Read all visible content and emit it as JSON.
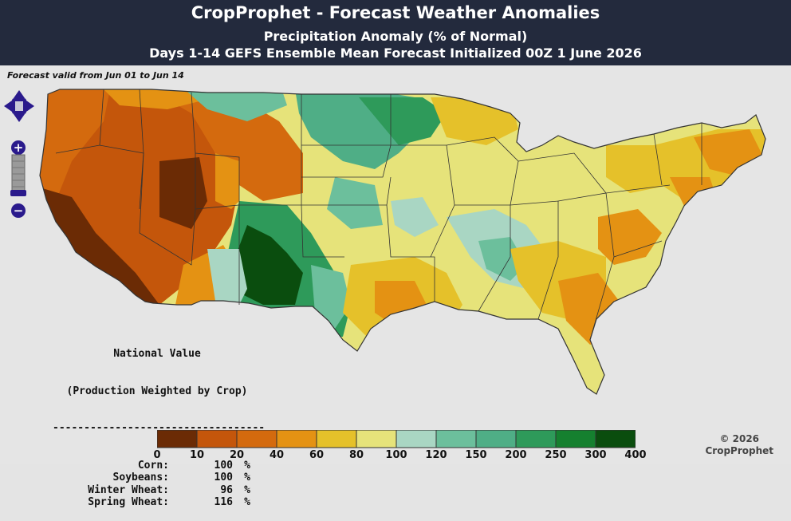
{
  "header": {
    "title": "CropProphet - Forecast Weather Anomalies",
    "subtitle": "Precipitation Anomaly (% of Normal)",
    "subtitle2": "Days 1-14 GEFS Ensemble Mean Forecast Initialized 00Z 1 June 2026"
  },
  "map": {
    "valid_text": "Forecast valid from Jun 01 to Jun 14",
    "colors": {
      "c0": "#6b2b05",
      "c1": "#b8520a",
      "c2": "#d46a0e",
      "c3": "#e49213",
      "c4": "#e5c12a",
      "c5": "#e6e37a",
      "c6": "#a9d6c3",
      "c7": "#6cbf9c",
      "c8": "#4fae86",
      "c9": "#2e9a5a",
      "c10": "#15802f",
      "c11": "#0a5a12"
    }
  },
  "controls": {
    "pan_icon": "pan-arrows-icon",
    "zoom_in_label": "+",
    "zoom_out_label": "−"
  },
  "national": {
    "heading1": "National Value",
    "heading2": "(Production Weighted by Crop)",
    "divider": "----------------------------------",
    "rows": [
      {
        "crop": "Corn:",
        "value": "100",
        "unit": "%"
      },
      {
        "crop": "Soybeans:",
        "value": "100",
        "unit": "%"
      },
      {
        "crop": "Winter Wheat:",
        "value": "96",
        "unit": "%"
      },
      {
        "crop": "Spring Wheat:",
        "value": "116",
        "unit": "%"
      }
    ]
  },
  "legend": {
    "bins": [
      "#6b2b05",
      "#c4560b",
      "#d46a0e",
      "#e49213",
      "#e5c12a",
      "#e6e37a",
      "#a9d6c3",
      "#6cbf9c",
      "#4fae86",
      "#2e9a5a",
      "#15802f",
      "#0a4d0e"
    ],
    "labels": [
      "0",
      "10",
      "20",
      "40",
      "60",
      "80",
      "100",
      "120",
      "150",
      "200",
      "250",
      "300",
      "400"
    ]
  },
  "copyright": {
    "line1": "© 2026",
    "line2": "CropProphet"
  }
}
